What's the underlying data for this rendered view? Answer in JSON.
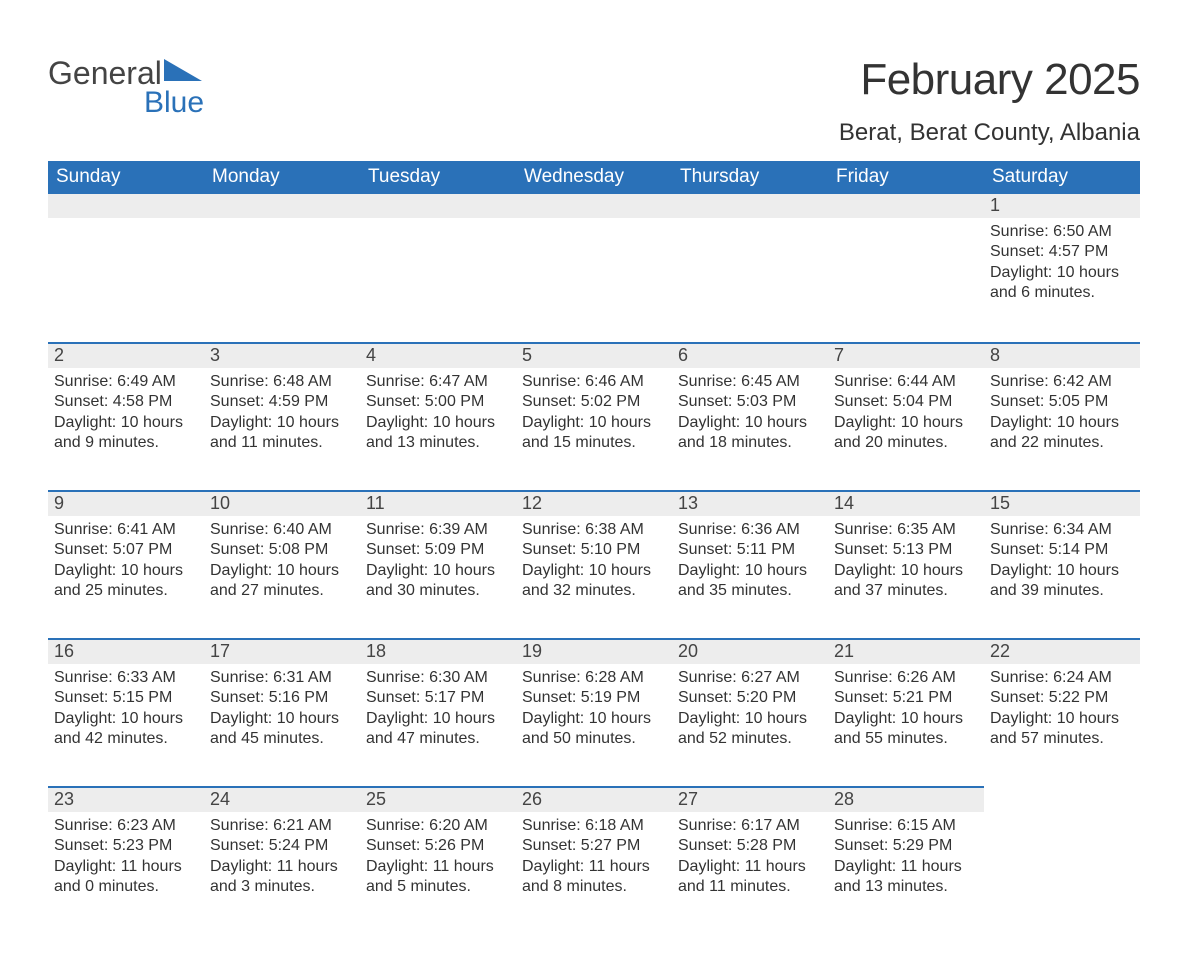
{
  "logo": {
    "text1": "General",
    "text2": "Blue"
  },
  "title": "February 2025",
  "location": "Berat, Berat County, Albania",
  "colors": {
    "header_bg": "#2a71b8",
    "header_text": "#ffffff",
    "daynum_bg": "#ededed",
    "row_border": "#2a71b8",
    "body_text": "#333333"
  },
  "weekdays": [
    "Sunday",
    "Monday",
    "Tuesday",
    "Wednesday",
    "Thursday",
    "Friday",
    "Saturday"
  ],
  "weeks": [
    [
      null,
      null,
      null,
      null,
      null,
      null,
      {
        "n": "1",
        "sr": "6:50 AM",
        "ss": "4:57 PM",
        "dl": "10 hours and 6 minutes."
      }
    ],
    [
      {
        "n": "2",
        "sr": "6:49 AM",
        "ss": "4:58 PM",
        "dl": "10 hours and 9 minutes."
      },
      {
        "n": "3",
        "sr": "6:48 AM",
        "ss": "4:59 PM",
        "dl": "10 hours and 11 minutes."
      },
      {
        "n": "4",
        "sr": "6:47 AM",
        "ss": "5:00 PM",
        "dl": "10 hours and 13 minutes."
      },
      {
        "n": "5",
        "sr": "6:46 AM",
        "ss": "5:02 PM",
        "dl": "10 hours and 15 minutes."
      },
      {
        "n": "6",
        "sr": "6:45 AM",
        "ss": "5:03 PM",
        "dl": "10 hours and 18 minutes."
      },
      {
        "n": "7",
        "sr": "6:44 AM",
        "ss": "5:04 PM",
        "dl": "10 hours and 20 minutes."
      },
      {
        "n": "8",
        "sr": "6:42 AM",
        "ss": "5:05 PM",
        "dl": "10 hours and 22 minutes."
      }
    ],
    [
      {
        "n": "9",
        "sr": "6:41 AM",
        "ss": "5:07 PM",
        "dl": "10 hours and 25 minutes."
      },
      {
        "n": "10",
        "sr": "6:40 AM",
        "ss": "5:08 PM",
        "dl": "10 hours and 27 minutes."
      },
      {
        "n": "11",
        "sr": "6:39 AM",
        "ss": "5:09 PM",
        "dl": "10 hours and 30 minutes."
      },
      {
        "n": "12",
        "sr": "6:38 AM",
        "ss": "5:10 PM",
        "dl": "10 hours and 32 minutes."
      },
      {
        "n": "13",
        "sr": "6:36 AM",
        "ss": "5:11 PM",
        "dl": "10 hours and 35 minutes."
      },
      {
        "n": "14",
        "sr": "6:35 AM",
        "ss": "5:13 PM",
        "dl": "10 hours and 37 minutes."
      },
      {
        "n": "15",
        "sr": "6:34 AM",
        "ss": "5:14 PM",
        "dl": "10 hours and 39 minutes."
      }
    ],
    [
      {
        "n": "16",
        "sr": "6:33 AM",
        "ss": "5:15 PM",
        "dl": "10 hours and 42 minutes."
      },
      {
        "n": "17",
        "sr": "6:31 AM",
        "ss": "5:16 PM",
        "dl": "10 hours and 45 minutes."
      },
      {
        "n": "18",
        "sr": "6:30 AM",
        "ss": "5:17 PM",
        "dl": "10 hours and 47 minutes."
      },
      {
        "n": "19",
        "sr": "6:28 AM",
        "ss": "5:19 PM",
        "dl": "10 hours and 50 minutes."
      },
      {
        "n": "20",
        "sr": "6:27 AM",
        "ss": "5:20 PM",
        "dl": "10 hours and 52 minutes."
      },
      {
        "n": "21",
        "sr": "6:26 AM",
        "ss": "5:21 PM",
        "dl": "10 hours and 55 minutes."
      },
      {
        "n": "22",
        "sr": "6:24 AM",
        "ss": "5:22 PM",
        "dl": "10 hours and 57 minutes."
      }
    ],
    [
      {
        "n": "23",
        "sr": "6:23 AM",
        "ss": "5:23 PM",
        "dl": "11 hours and 0 minutes."
      },
      {
        "n": "24",
        "sr": "6:21 AM",
        "ss": "5:24 PM",
        "dl": "11 hours and 3 minutes."
      },
      {
        "n": "25",
        "sr": "6:20 AM",
        "ss": "5:26 PM",
        "dl": "11 hours and 5 minutes."
      },
      {
        "n": "26",
        "sr": "6:18 AM",
        "ss": "5:27 PM",
        "dl": "11 hours and 8 minutes."
      },
      {
        "n": "27",
        "sr": "6:17 AM",
        "ss": "5:28 PM",
        "dl": "11 hours and 11 minutes."
      },
      {
        "n": "28",
        "sr": "6:15 AM",
        "ss": "5:29 PM",
        "dl": "11 hours and 13 minutes."
      },
      null
    ]
  ],
  "labels": {
    "sunrise": "Sunrise: ",
    "sunset": "Sunset: ",
    "daylight": "Daylight: "
  }
}
